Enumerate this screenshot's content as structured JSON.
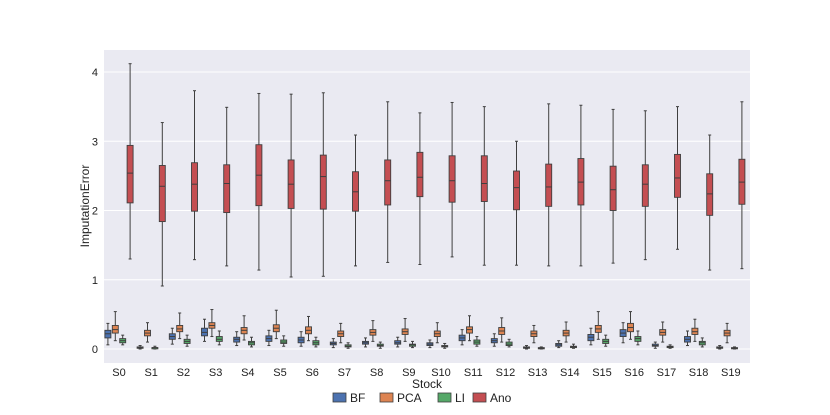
{
  "chart_data": {
    "type": "box",
    "title": "",
    "xlabel": "Stock",
    "ylabel": "ImputationError",
    "ylim": [
      -0.2,
      4.25
    ],
    "yticks": [
      0,
      1,
      2,
      3,
      4
    ],
    "grid": true,
    "legend_position": "bottom-center",
    "categories": [
      "S0",
      "S1",
      "S2",
      "S3",
      "S4",
      "S5",
      "S6",
      "S7",
      "S8",
      "S9",
      "S10",
      "S11",
      "S12",
      "S13",
      "S14",
      "S15",
      "S16",
      "S17",
      "S18",
      "S19"
    ],
    "series": [
      {
        "name": "BF",
        "color": "#4c72b0",
        "boxes": [
          {
            "min": 0.06,
            "q1": 0.16,
            "median": 0.22,
            "q3": 0.27,
            "max": 0.37
          },
          {
            "min": 0.0,
            "q1": 0.01,
            "median": 0.02,
            "q3": 0.03,
            "max": 0.05
          },
          {
            "min": 0.07,
            "q1": 0.14,
            "median": 0.18,
            "q3": 0.22,
            "max": 0.3
          },
          {
            "min": 0.11,
            "q1": 0.19,
            "median": 0.24,
            "q3": 0.3,
            "max": 0.43
          },
          {
            "min": 0.05,
            "q1": 0.1,
            "median": 0.14,
            "q3": 0.17,
            "max": 0.25
          },
          {
            "min": 0.05,
            "q1": 0.11,
            "median": 0.15,
            "q3": 0.19,
            "max": 0.27
          },
          {
            "min": 0.04,
            "q1": 0.09,
            "median": 0.13,
            "q3": 0.17,
            "max": 0.25
          },
          {
            "min": 0.02,
            "q1": 0.06,
            "median": 0.08,
            "q3": 0.1,
            "max": 0.15
          },
          {
            "min": 0.03,
            "q1": 0.07,
            "median": 0.09,
            "q3": 0.11,
            "max": 0.16
          },
          {
            "min": 0.03,
            "q1": 0.07,
            "median": 0.09,
            "q3": 0.12,
            "max": 0.17
          },
          {
            "min": 0.02,
            "q1": 0.05,
            "median": 0.07,
            "q3": 0.09,
            "max": 0.13
          },
          {
            "min": 0.06,
            "q1": 0.12,
            "median": 0.16,
            "q3": 0.2,
            "max": 0.28
          },
          {
            "min": 0.04,
            "q1": 0.09,
            "median": 0.12,
            "q3": 0.15,
            "max": 0.22
          },
          {
            "min": 0.0,
            "q1": 0.01,
            "median": 0.02,
            "q3": 0.03,
            "max": 0.05
          },
          {
            "min": 0.02,
            "q1": 0.04,
            "median": 0.06,
            "q3": 0.08,
            "max": 0.12
          },
          {
            "min": 0.06,
            "q1": 0.12,
            "median": 0.17,
            "q3": 0.21,
            "max": 0.3
          },
          {
            "min": 0.09,
            "q1": 0.18,
            "median": 0.23,
            "q3": 0.28,
            "max": 0.38
          },
          {
            "min": 0.01,
            "q1": 0.04,
            "median": 0.05,
            "q3": 0.07,
            "max": 0.1
          },
          {
            "min": 0.05,
            "q1": 0.1,
            "median": 0.14,
            "q3": 0.18,
            "max": 0.26
          },
          {
            "min": 0.0,
            "q1": 0.01,
            "median": 0.02,
            "q3": 0.03,
            "max": 0.05
          }
        ]
      },
      {
        "name": "PCA",
        "color": "#dd8452",
        "boxes": [
          {
            "min": 0.12,
            "q1": 0.23,
            "median": 0.28,
            "q3": 0.34,
            "max": 0.54
          },
          {
            "min": 0.1,
            "q1": 0.19,
            "median": 0.23,
            "q3": 0.27,
            "max": 0.38
          },
          {
            "min": 0.15,
            "q1": 0.25,
            "median": 0.29,
            "q3": 0.34,
            "max": 0.52
          },
          {
            "min": 0.18,
            "q1": 0.3,
            "median": 0.34,
            "q3": 0.38,
            "max": 0.57
          },
          {
            "min": 0.13,
            "q1": 0.22,
            "median": 0.27,
            "q3": 0.31,
            "max": 0.48
          },
          {
            "min": 0.15,
            "q1": 0.25,
            "median": 0.3,
            "q3": 0.35,
            "max": 0.56
          },
          {
            "min": 0.12,
            "q1": 0.22,
            "median": 0.27,
            "q3": 0.32,
            "max": 0.47
          },
          {
            "min": 0.09,
            "q1": 0.18,
            "median": 0.22,
            "q3": 0.26,
            "max": 0.37
          },
          {
            "min": 0.11,
            "q1": 0.2,
            "median": 0.24,
            "q3": 0.28,
            "max": 0.41
          },
          {
            "min": 0.11,
            "q1": 0.21,
            "median": 0.25,
            "q3": 0.29,
            "max": 0.44
          },
          {
            "min": 0.09,
            "q1": 0.18,
            "median": 0.22,
            "q3": 0.26,
            "max": 0.38
          },
          {
            "min": 0.12,
            "q1": 0.23,
            "median": 0.28,
            "q3": 0.32,
            "max": 0.48
          },
          {
            "min": 0.1,
            "q1": 0.21,
            "median": 0.26,
            "q3": 0.31,
            "max": 0.45
          },
          {
            "min": 0.09,
            "q1": 0.18,
            "median": 0.22,
            "q3": 0.26,
            "max": 0.34
          },
          {
            "min": 0.1,
            "q1": 0.19,
            "median": 0.23,
            "q3": 0.27,
            "max": 0.39
          },
          {
            "min": 0.14,
            "q1": 0.24,
            "median": 0.29,
            "q3": 0.34,
            "max": 0.54
          },
          {
            "min": 0.14,
            "q1": 0.25,
            "median": 0.31,
            "q3": 0.37,
            "max": 0.54
          },
          {
            "min": 0.1,
            "q1": 0.2,
            "median": 0.24,
            "q3": 0.28,
            "max": 0.39
          },
          {
            "min": 0.11,
            "q1": 0.21,
            "median": 0.25,
            "q3": 0.3,
            "max": 0.43
          },
          {
            "min": 0.09,
            "q1": 0.19,
            "median": 0.23,
            "q3": 0.27,
            "max": 0.37
          }
        ]
      },
      {
        "name": "LI",
        "color": "#55a868",
        "boxes": [
          {
            "min": 0.06,
            "q1": 0.09,
            "median": 0.12,
            "q3": 0.15,
            "max": 0.2
          },
          {
            "min": 0.0,
            "q1": 0.01,
            "median": 0.02,
            "q3": 0.02,
            "max": 0.04
          },
          {
            "min": 0.04,
            "q1": 0.08,
            "median": 0.11,
            "q3": 0.14,
            "max": 0.2
          },
          {
            "min": 0.06,
            "q1": 0.11,
            "median": 0.14,
            "q3": 0.18,
            "max": 0.26
          },
          {
            "min": 0.03,
            "q1": 0.06,
            "median": 0.09,
            "q3": 0.11,
            "max": 0.17
          },
          {
            "min": 0.04,
            "q1": 0.08,
            "median": 0.1,
            "q3": 0.13,
            "max": 0.19
          },
          {
            "min": 0.03,
            "q1": 0.06,
            "median": 0.09,
            "q3": 0.12,
            "max": 0.17
          },
          {
            "min": 0.01,
            "q1": 0.03,
            "median": 0.04,
            "q3": 0.06,
            "max": 0.09
          },
          {
            "min": 0.01,
            "q1": 0.04,
            "median": 0.05,
            "q3": 0.07,
            "max": 0.1
          },
          {
            "min": 0.02,
            "q1": 0.04,
            "median": 0.06,
            "q3": 0.07,
            "max": 0.11
          },
          {
            "min": 0.01,
            "q1": 0.03,
            "median": 0.04,
            "q3": 0.05,
            "max": 0.08
          },
          {
            "min": 0.04,
            "q1": 0.07,
            "median": 0.1,
            "q3": 0.13,
            "max": 0.18
          },
          {
            "min": 0.03,
            "q1": 0.05,
            "median": 0.07,
            "q3": 0.1,
            "max": 0.14
          },
          {
            "min": 0.0,
            "q1": 0.01,
            "median": 0.01,
            "q3": 0.02,
            "max": 0.03
          },
          {
            "min": 0.01,
            "q1": 0.02,
            "median": 0.03,
            "q3": 0.04,
            "max": 0.07
          },
          {
            "min": 0.04,
            "q1": 0.08,
            "median": 0.11,
            "q3": 0.14,
            "max": 0.2
          },
          {
            "min": 0.06,
            "q1": 0.11,
            "median": 0.15,
            "q3": 0.18,
            "max": 0.26
          },
          {
            "min": 0.01,
            "q1": 0.02,
            "median": 0.03,
            "q3": 0.04,
            "max": 0.06
          },
          {
            "min": 0.03,
            "q1": 0.06,
            "median": 0.09,
            "q3": 0.11,
            "max": 0.16
          },
          {
            "min": 0.0,
            "q1": 0.01,
            "median": 0.01,
            "q3": 0.02,
            "max": 0.03
          }
        ]
      },
      {
        "name": "Ano",
        "color": "#c44e52",
        "boxes": [
          {
            "min": 1.3,
            "q1": 2.11,
            "median": 2.54,
            "q3": 2.94,
            "max": 4.12
          },
          {
            "min": 0.91,
            "q1": 1.84,
            "median": 2.35,
            "q3": 2.65,
            "max": 3.27
          },
          {
            "min": 1.29,
            "q1": 1.99,
            "median": 2.38,
            "q3": 2.69,
            "max": 3.73
          },
          {
            "min": 1.2,
            "q1": 1.97,
            "median": 2.39,
            "q3": 2.66,
            "max": 3.49
          },
          {
            "min": 1.14,
            "q1": 2.07,
            "median": 2.51,
            "q3": 2.95,
            "max": 3.69
          },
          {
            "min": 1.04,
            "q1": 2.03,
            "median": 2.38,
            "q3": 2.73,
            "max": 3.68
          },
          {
            "min": 1.05,
            "q1": 2.02,
            "median": 2.49,
            "q3": 2.8,
            "max": 3.7
          },
          {
            "min": 1.2,
            "q1": 1.99,
            "median": 2.27,
            "q3": 2.56,
            "max": 3.09
          },
          {
            "min": 1.25,
            "q1": 2.08,
            "median": 2.43,
            "q3": 2.73,
            "max": 3.57
          },
          {
            "min": 1.22,
            "q1": 2.2,
            "median": 2.48,
            "q3": 2.84,
            "max": 3.41
          },
          {
            "min": 1.33,
            "q1": 2.12,
            "median": 2.43,
            "q3": 2.79,
            "max": 3.56
          },
          {
            "min": 1.21,
            "q1": 2.13,
            "median": 2.39,
            "q3": 2.79,
            "max": 3.5
          },
          {
            "min": 1.21,
            "q1": 2.01,
            "median": 2.33,
            "q3": 2.57,
            "max": 3.0
          },
          {
            "min": 1.2,
            "q1": 2.06,
            "median": 2.34,
            "q3": 2.67,
            "max": 3.54
          },
          {
            "min": 1.2,
            "q1": 2.08,
            "median": 2.41,
            "q3": 2.75,
            "max": 3.52
          },
          {
            "min": 1.24,
            "q1": 2.0,
            "median": 2.3,
            "q3": 2.64,
            "max": 3.46
          },
          {
            "min": 1.29,
            "q1": 2.06,
            "median": 2.38,
            "q3": 2.66,
            "max": 3.44
          },
          {
            "min": 1.44,
            "q1": 2.19,
            "median": 2.47,
            "q3": 2.81,
            "max": 3.5
          },
          {
            "min": 1.14,
            "q1": 1.93,
            "median": 2.24,
            "q3": 2.53,
            "max": 3.09
          },
          {
            "min": 1.16,
            "q1": 2.09,
            "median": 2.41,
            "q3": 2.74,
            "max": 3.57
          }
        ]
      }
    ]
  }
}
